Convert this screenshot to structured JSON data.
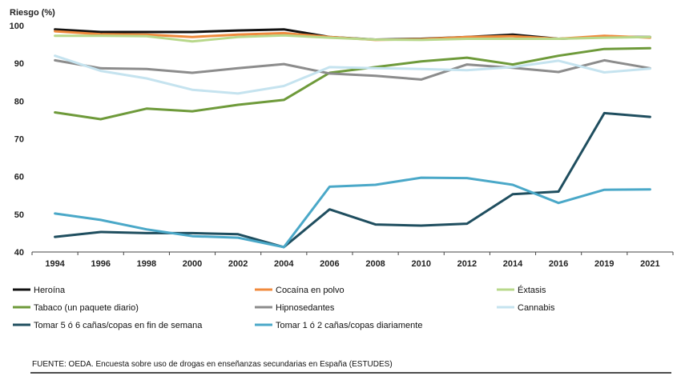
{
  "chart_data": {
    "type": "line",
    "ylabel": "Riesgo (%)",
    "xlabel": "",
    "ylim": [
      40,
      100
    ],
    "yticks": [
      40,
      50,
      60,
      70,
      80,
      90,
      100
    ],
    "categories": [
      "1994",
      "1996",
      "1998",
      "2000",
      "2002",
      "2004",
      "2006",
      "2008",
      "2010",
      "2012",
      "2014",
      "2016",
      "2019",
      "2021"
    ],
    "grid": false,
    "legend_position": "bottom",
    "series": [
      {
        "name": "Heroína",
        "color": "#111111",
        "values": [
          99,
          98.3,
          98.3,
          98.3,
          98.7,
          99,
          97,
          96.3,
          96.5,
          97,
          97.6,
          96.5,
          97,
          97
        ]
      },
      {
        "name": "Cocaína en polvo",
        "color": "#f08a3c",
        "values": [
          98.5,
          97.7,
          97.6,
          97,
          97.6,
          98,
          97,
          96.2,
          96.4,
          97,
          97.2,
          96.5,
          97.3,
          96.8
        ]
      },
      {
        "name": "Éxtasis",
        "color": "#b8d88b",
        "values": [
          97.3,
          97.3,
          97.2,
          95.8,
          97,
          97.4,
          96.8,
          96.3,
          96.2,
          96.5,
          96.5,
          96.5,
          96.8,
          97
        ]
      },
      {
        "name": "Tabaco (un paquete diario)",
        "color": "#6e9a3a",
        "values": [
          77,
          75.2,
          78,
          77.3,
          79,
          80.3,
          87.5,
          89,
          90.5,
          91.5,
          89.7,
          92,
          93.8,
          94
        ]
      },
      {
        "name": "Hipnosedantes",
        "color": "#8c8c8c",
        "values": [
          90.8,
          88.7,
          88.5,
          87.5,
          88.7,
          89.8,
          87.3,
          86.7,
          85.7,
          89.7,
          88.8,
          87.7,
          90.8,
          88.7
        ]
      },
      {
        "name": "Cannabis",
        "color": "#c5e3ef",
        "values": [
          92,
          88,
          86,
          83,
          82,
          84,
          89,
          88.7,
          88.5,
          88.2,
          89,
          90.7,
          87.6,
          88.6
        ]
      },
      {
        "name": "Tomar 5 ó 6 cañas/copas en fin de semana",
        "color": "#1f4e5f",
        "values": [
          44,
          45.3,
          45,
          45,
          44.7,
          41.3,
          51.3,
          47.3,
          47,
          47.5,
          55.3,
          56,
          76.8,
          75.8
        ]
      },
      {
        "name": "Tomar 1 ó 2 cañas/copas diariamente",
        "color": "#4aa8c8",
        "values": [
          50.2,
          48.5,
          46,
          44.2,
          43.8,
          41.3,
          57.3,
          57.8,
          59.7,
          59.6,
          57.8,
          53,
          56.5,
          56.6
        ]
      }
    ]
  },
  "source": "FUENTE: OEDA. Encuesta sobre uso de drogas en enseñanzas secundarias en España (ESTUDES)"
}
